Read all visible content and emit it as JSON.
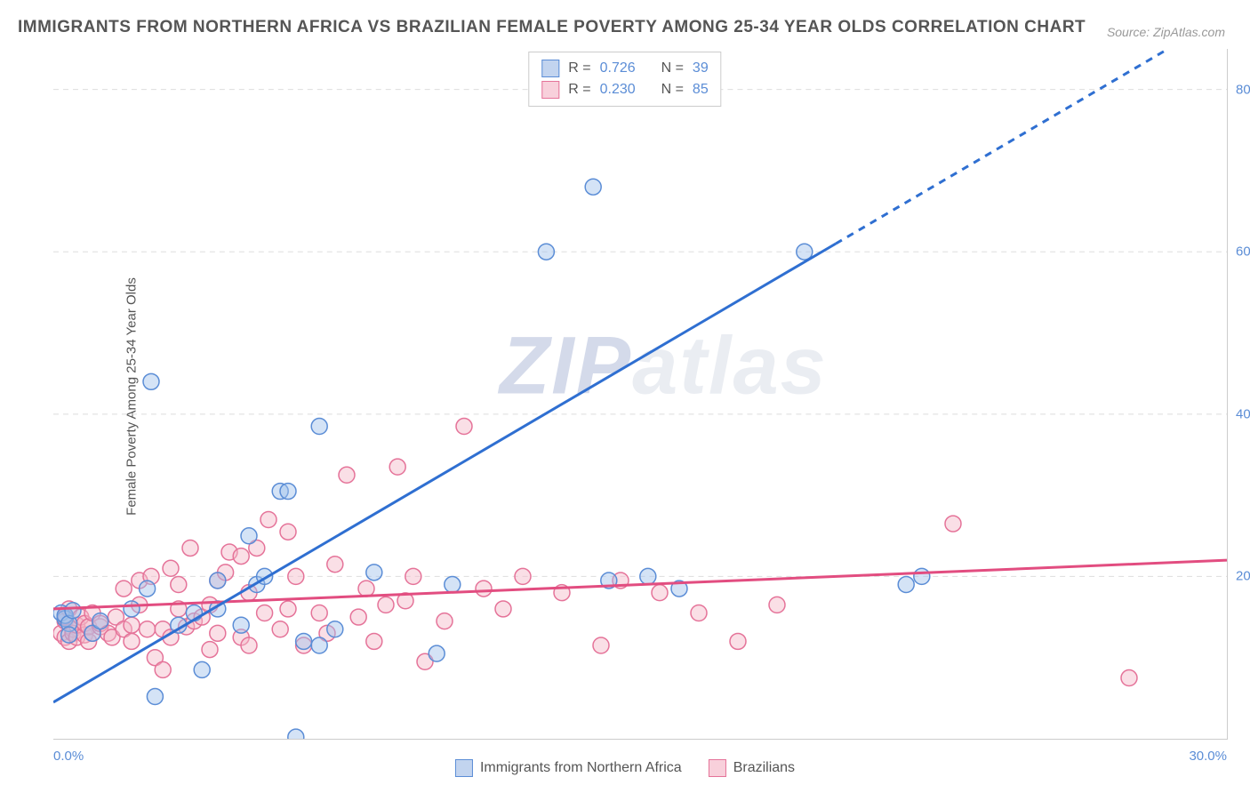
{
  "title": "IMMIGRANTS FROM NORTHERN AFRICA VS BRAZILIAN FEMALE POVERTY AMONG 25-34 YEAR OLDS CORRELATION CHART",
  "source_label": "Source:",
  "source_value": "ZipAtlas.com",
  "ylabel": "Female Poverty Among 25-34 Year Olds",
  "watermark": {
    "prefix": "ZIP",
    "suffix": "atlas"
  },
  "legend_top": {
    "r_label": "R =",
    "n_label": "N =",
    "series": [
      {
        "color": "blue",
        "r": "0.726",
        "n": "39"
      },
      {
        "color": "pink",
        "r": "0.230",
        "n": "85"
      }
    ]
  },
  "legend_bottom": {
    "series": [
      {
        "color": "blue",
        "label": "Immigrants from Northern Africa"
      },
      {
        "color": "pink",
        "label": "Brazilians"
      }
    ]
  },
  "chart": {
    "type": "scatter",
    "xlim": [
      0,
      30
    ],
    "ylim": [
      0,
      85
    ],
    "xticks": [
      {
        "value": 0,
        "label": "0.0%"
      },
      {
        "value": 30,
        "label": "30.0%"
      }
    ],
    "yticks": [
      {
        "value": 20,
        "label": "20.0%"
      },
      {
        "value": 40,
        "label": "40.0%"
      },
      {
        "value": 60,
        "label": "60.0%"
      },
      {
        "value": 80,
        "label": "80.0%"
      }
    ],
    "grid_color": "#dddddd",
    "background_color": "#ffffff",
    "marker_radius": 9,
    "marker_opacity": 0.45,
    "series_blue": {
      "fill": "#9fc0eb",
      "stroke": "#5b8dd6",
      "line_color": "#2f6fd1",
      "line_width": 3,
      "regression": {
        "x1": 0,
        "y1": 4.5,
        "x2": 20,
        "y2": 61
      },
      "dash_from_x": 20,
      "points": [
        [
          0.2,
          15.5
        ],
        [
          0.3,
          14.8
        ],
        [
          0.3,
          15.2
        ],
        [
          0.4,
          14.2
        ],
        [
          0.4,
          12.8
        ],
        [
          0.5,
          15.8
        ],
        [
          1.0,
          13.0
        ],
        [
          1.2,
          14.5
        ],
        [
          2.0,
          16.0
        ],
        [
          2.4,
          18.5
        ],
        [
          2.6,
          5.2
        ],
        [
          2.5,
          44.0
        ],
        [
          3.2,
          14.0
        ],
        [
          3.6,
          15.5
        ],
        [
          3.8,
          8.5
        ],
        [
          4.2,
          16.0
        ],
        [
          4.2,
          19.5
        ],
        [
          4.8,
          14.0
        ],
        [
          5.0,
          25.0
        ],
        [
          5.2,
          19.0
        ],
        [
          5.4,
          20.0
        ],
        [
          5.8,
          30.5
        ],
        [
          6.0,
          30.5
        ],
        [
          6.2,
          0.2
        ],
        [
          6.4,
          12.0
        ],
        [
          6.8,
          11.5
        ],
        [
          6.8,
          38.5
        ],
        [
          7.2,
          13.5
        ],
        [
          8.2,
          20.5
        ],
        [
          9.8,
          10.5
        ],
        [
          10.2,
          19.0
        ],
        [
          12.6,
          60.0
        ],
        [
          13.8,
          68.0
        ],
        [
          14.2,
          19.5
        ],
        [
          15.2,
          20.0
        ],
        [
          16.0,
          18.5
        ],
        [
          19.2,
          60.0
        ],
        [
          21.8,
          19.0
        ],
        [
          22.2,
          20.0
        ]
      ]
    },
    "series_pink": {
      "fill": "#f4b8c8",
      "stroke": "#e57399",
      "line_color": "#e24d80",
      "line_width": 3,
      "regression": {
        "x1": 0,
        "y1": 16.0,
        "x2": 30,
        "y2": 22.0
      },
      "points": [
        [
          0.2,
          13.0
        ],
        [
          0.3,
          14.5
        ],
        [
          0.3,
          12.5
        ],
        [
          0.3,
          15.0
        ],
        [
          0.4,
          12.0
        ],
        [
          0.4,
          16.0
        ],
        [
          0.5,
          13.5
        ],
        [
          0.5,
          13.0
        ],
        [
          0.6,
          12.5
        ],
        [
          0.6,
          14.0
        ],
        [
          0.7,
          15.0
        ],
        [
          0.8,
          12.8
        ],
        [
          0.8,
          14.2
        ],
        [
          0.9,
          12.0
        ],
        [
          0.9,
          13.8
        ],
        [
          1.0,
          13.0
        ],
        [
          1.0,
          15.5
        ],
        [
          1.2,
          13.8
        ],
        [
          1.2,
          14.2
        ],
        [
          1.4,
          13.0
        ],
        [
          1.5,
          12.5
        ],
        [
          1.6,
          15.0
        ],
        [
          1.8,
          13.5
        ],
        [
          1.8,
          18.5
        ],
        [
          2.0,
          14.0
        ],
        [
          2.0,
          12.0
        ],
        [
          2.2,
          16.5
        ],
        [
          2.2,
          19.5
        ],
        [
          2.4,
          13.5
        ],
        [
          2.5,
          20.0
        ],
        [
          2.6,
          10.0
        ],
        [
          2.8,
          13.5
        ],
        [
          2.8,
          8.5
        ],
        [
          3.0,
          21.0
        ],
        [
          3.0,
          12.5
        ],
        [
          3.2,
          16.0
        ],
        [
          3.2,
          19.0
        ],
        [
          3.4,
          13.8
        ],
        [
          3.5,
          23.5
        ],
        [
          3.6,
          14.5
        ],
        [
          3.8,
          15.0
        ],
        [
          4.0,
          11.0
        ],
        [
          4.0,
          16.5
        ],
        [
          4.2,
          19.5
        ],
        [
          4.2,
          13.0
        ],
        [
          4.4,
          20.5
        ],
        [
          4.5,
          23.0
        ],
        [
          4.8,
          12.5
        ],
        [
          4.8,
          22.5
        ],
        [
          5.0,
          11.5
        ],
        [
          5.0,
          18.0
        ],
        [
          5.2,
          23.5
        ],
        [
          5.4,
          15.5
        ],
        [
          5.5,
          27.0
        ],
        [
          5.8,
          13.5
        ],
        [
          6.0,
          25.5
        ],
        [
          6.0,
          16.0
        ],
        [
          6.2,
          20.0
        ],
        [
          6.4,
          11.5
        ],
        [
          6.8,
          15.5
        ],
        [
          7.0,
          13.0
        ],
        [
          7.2,
          21.5
        ],
        [
          7.5,
          32.5
        ],
        [
          7.8,
          15.0
        ],
        [
          8.0,
          18.5
        ],
        [
          8.2,
          12.0
        ],
        [
          8.5,
          16.5
        ],
        [
          8.8,
          33.5
        ],
        [
          9.0,
          17.0
        ],
        [
          9.2,
          20.0
        ],
        [
          9.5,
          9.5
        ],
        [
          10.0,
          14.5
        ],
        [
          10.5,
          38.5
        ],
        [
          11.0,
          18.5
        ],
        [
          11.5,
          16.0
        ],
        [
          12.0,
          20.0
        ],
        [
          13.0,
          18.0
        ],
        [
          14.0,
          11.5
        ],
        [
          14.5,
          19.5
        ],
        [
          15.5,
          18.0
        ],
        [
          16.5,
          15.5
        ],
        [
          17.5,
          12.0
        ],
        [
          18.5,
          16.5
        ],
        [
          23.0,
          26.5
        ],
        [
          27.5,
          7.5
        ]
      ]
    }
  }
}
